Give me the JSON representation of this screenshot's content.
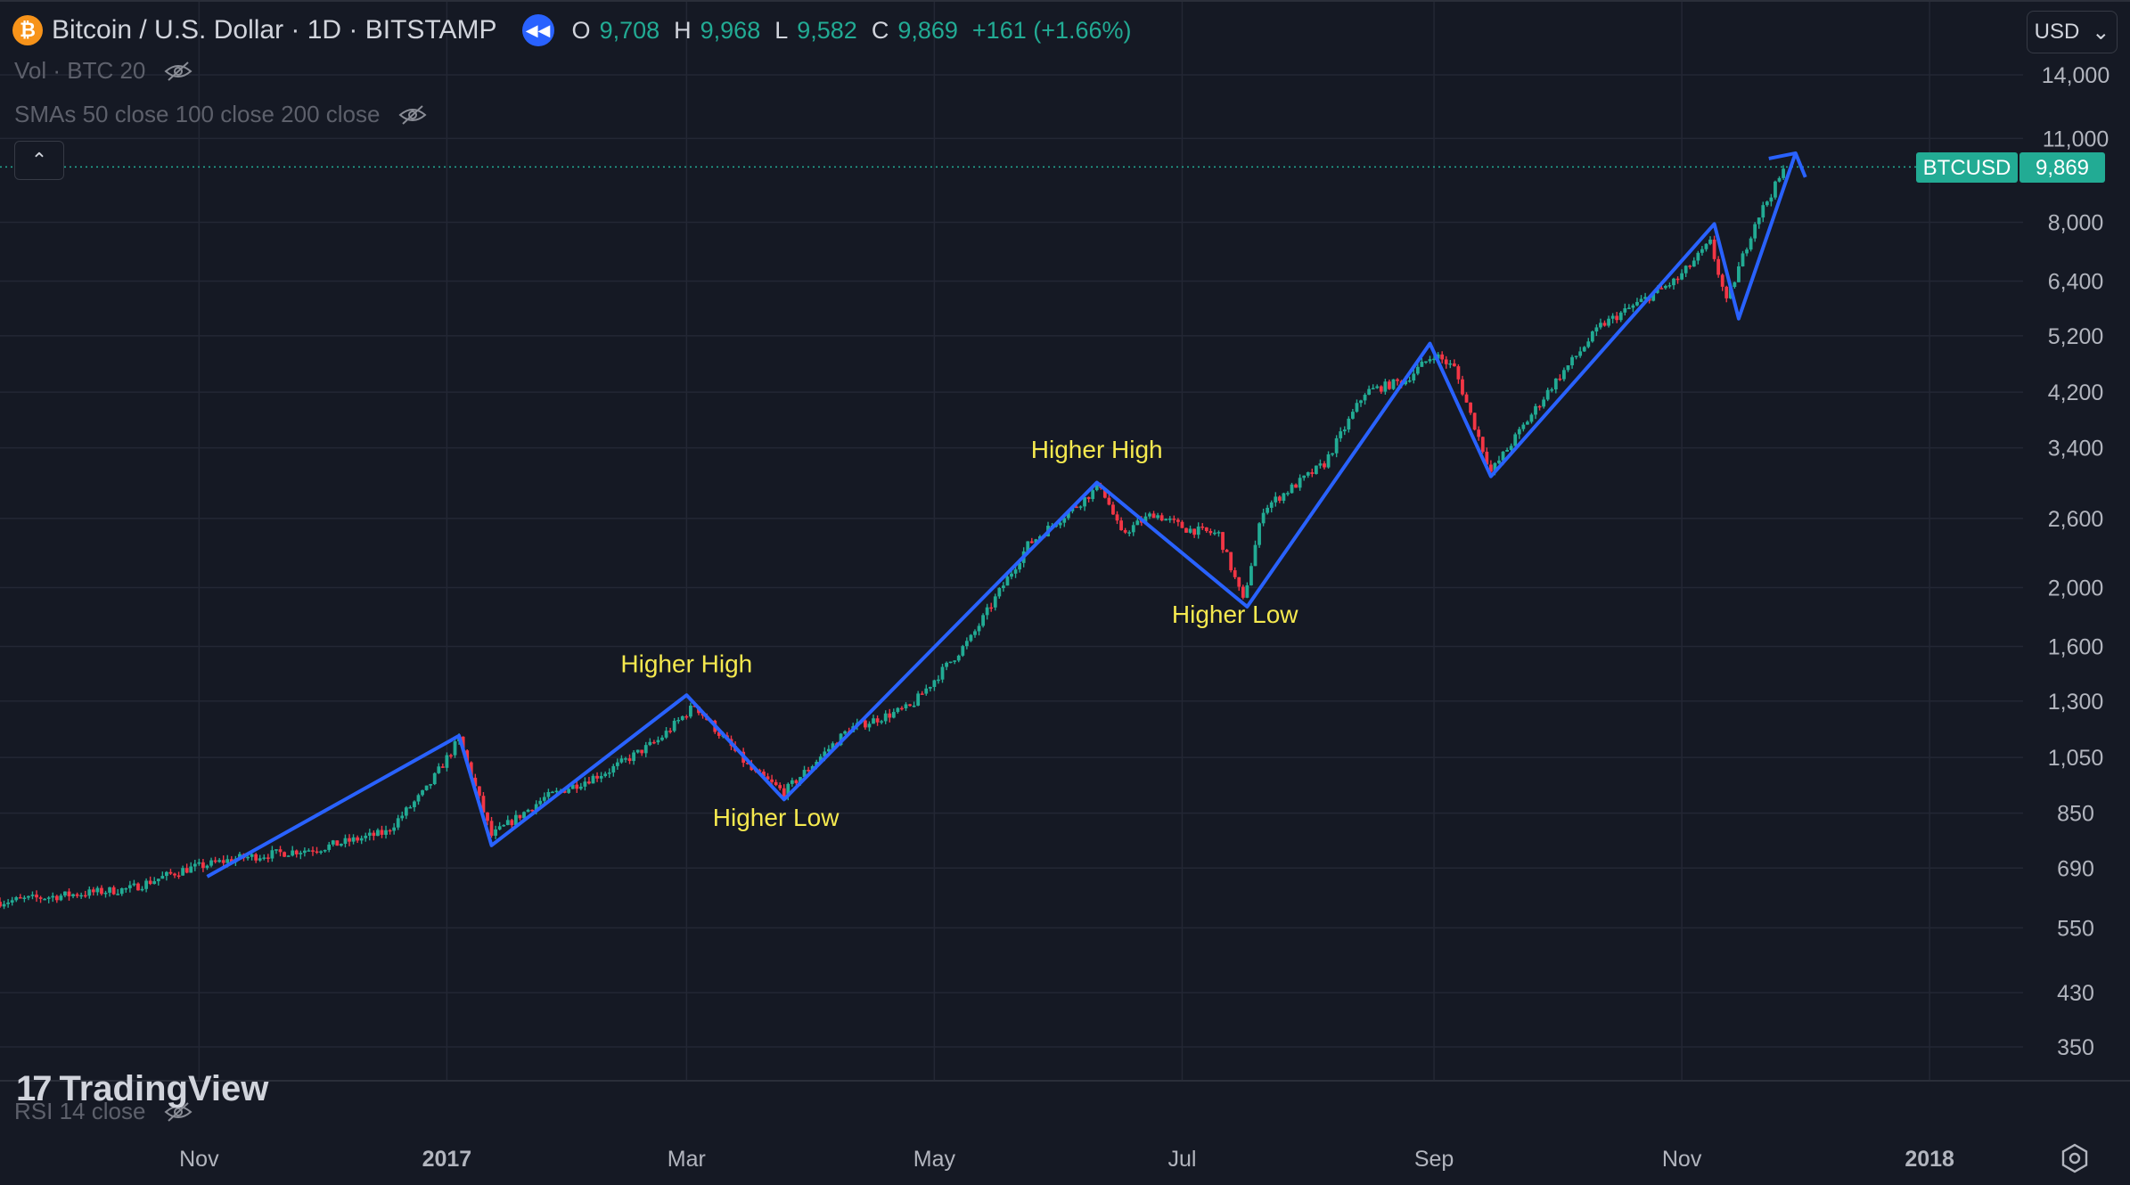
{
  "header": {
    "symbol_title": "Bitcoin / U.S. Dollar · 1D · BITSTAMP",
    "coin_glyph": "₿",
    "ohlc": [
      {
        "key": "O",
        "value": "9,708"
      },
      {
        "key": "H",
        "value": "9,968"
      },
      {
        "key": "L",
        "value": "9,582"
      },
      {
        "key": "C",
        "value": "9,869"
      }
    ],
    "change": "+161 (+1.66%)"
  },
  "indicators": {
    "volume": "Vol · BTC 20",
    "smas": "SMAs 50 close 100 close 200 close",
    "rsi": "RSI 14 close"
  },
  "currency_button": "USD",
  "watermark": "TradingView",
  "price_tag": {
    "symbol": "BTCUSD",
    "value": "9,869"
  },
  "colors": {
    "up": "#22ab94",
    "down": "#f23645",
    "trend": "#2962ff",
    "annotation": "#f5e94f",
    "grid": "#232734",
    "background": "#151924"
  },
  "chart_data": {
    "type": "candlestick",
    "title": "Bitcoin / U.S. Dollar · 1D · BITSTAMP",
    "y_scale": "log",
    "y_ticks": [
      14000,
      11000,
      8000,
      6400,
      5200,
      4200,
      3400,
      2600,
      2000,
      1600,
      1300,
      1050,
      850,
      690,
      550,
      430,
      350
    ],
    "y_tick_labels": [
      "14,000",
      "11,000",
      "8,000",
      "6,400",
      "5,200",
      "4,200",
      "3,400",
      "2,600",
      "2,000",
      "1,600",
      "1,300",
      "1,050",
      "850",
      "690",
      "550",
      "430",
      "350"
    ],
    "x_range": [
      "2016-09-13",
      "2018-01-24"
    ],
    "x_ticks": [
      {
        "date": "2016-11-01",
        "label": "Nov",
        "bold": false
      },
      {
        "date": "2017-01-01",
        "label": "2017",
        "bold": true
      },
      {
        "date": "2017-03-01",
        "label": "Mar",
        "bold": false
      },
      {
        "date": "2017-05-01",
        "label": "May",
        "bold": false
      },
      {
        "date": "2017-07-01",
        "label": "Jul",
        "bold": false
      },
      {
        "date": "2017-09-01",
        "label": "Sep",
        "bold": false
      },
      {
        "date": "2017-11-01",
        "label": "Nov",
        "bold": false
      },
      {
        "date": "2018-01-01",
        "label": "2018",
        "bold": true
      }
    ],
    "last_price": 9869,
    "price_anchors": [
      {
        "date": "2016-09-13",
        "price": 607
      },
      {
        "date": "2016-10-15",
        "price": 638
      },
      {
        "date": "2016-10-28",
        "price": 685
      },
      {
        "date": "2016-11-10",
        "price": 715
      },
      {
        "date": "2016-12-01",
        "price": 745
      },
      {
        "date": "2016-12-17",
        "price": 790
      },
      {
        "date": "2016-12-27",
        "price": 930
      },
      {
        "date": "2017-01-04",
        "price": 1125
      },
      {
        "date": "2017-01-12",
        "price": 780
      },
      {
        "date": "2017-01-25",
        "price": 900
      },
      {
        "date": "2017-02-10",
        "price": 1000
      },
      {
        "date": "2017-02-22",
        "price": 1120
      },
      {
        "date": "2017-03-03",
        "price": 1280
      },
      {
        "date": "2017-03-17",
        "price": 1000
      },
      {
        "date": "2017-03-25",
        "price": 920
      },
      {
        "date": "2017-04-10",
        "price": 1170
      },
      {
        "date": "2017-04-25",
        "price": 1270
      },
      {
        "date": "2017-05-10",
        "price": 1650
      },
      {
        "date": "2017-05-24",
        "price": 2350
      },
      {
        "date": "2017-06-11",
        "price": 2950
      },
      {
        "date": "2017-06-16",
        "price": 2450
      },
      {
        "date": "2017-06-24",
        "price": 2650
      },
      {
        "date": "2017-07-02",
        "price": 2500
      },
      {
        "date": "2017-07-10",
        "price": 2450
      },
      {
        "date": "2017-07-16",
        "price": 1900
      },
      {
        "date": "2017-07-21",
        "price": 2700
      },
      {
        "date": "2017-08-05",
        "price": 3200
      },
      {
        "date": "2017-08-15",
        "price": 4200
      },
      {
        "date": "2017-08-25",
        "price": 4400
      },
      {
        "date": "2017-09-01",
        "price": 4850
      },
      {
        "date": "2017-09-06",
        "price": 4600
      },
      {
        "date": "2017-09-15",
        "price": 3100
      },
      {
        "date": "2017-09-30",
        "price": 4300
      },
      {
        "date": "2017-10-12",
        "price": 5400
      },
      {
        "date": "2017-10-31",
        "price": 6450
      },
      {
        "date": "2017-11-08",
        "price": 7400
      },
      {
        "date": "2017-11-12",
        "price": 5900
      },
      {
        "date": "2017-11-19",
        "price": 8000
      },
      {
        "date": "2017-11-26",
        "price": 9700
      }
    ],
    "trend_lines": [
      {
        "date": "2016-11-03",
        "price": 668
      },
      {
        "date": "2017-01-04",
        "price": 1140
      },
      {
        "date": "2017-01-12",
        "price": 752
      },
      {
        "date": "2017-03-01",
        "price": 1330
      },
      {
        "date": "2017-03-25",
        "price": 895
      },
      {
        "date": "2017-06-10",
        "price": 2980
      },
      {
        "date": "2017-07-17",
        "price": 1860
      },
      {
        "date": "2017-08-31",
        "price": 5050
      },
      {
        "date": "2017-09-15",
        "price": 3050
      },
      {
        "date": "2017-11-09",
        "price": 7950
      },
      {
        "date": "2017-11-15",
        "price": 5550
      },
      {
        "date": "2017-11-29",
        "price": 10400
      }
    ],
    "annotations": [
      {
        "text": "Higher High",
        "date": "2017-03-01",
        "price": 1450
      },
      {
        "text": "Higher Low",
        "date": "2017-03-23",
        "price": 810
      },
      {
        "text": "Higher High",
        "date": "2017-06-10",
        "price": 3270
      },
      {
        "text": "Higher Low",
        "date": "2017-07-14",
        "price": 1750
      }
    ]
  }
}
